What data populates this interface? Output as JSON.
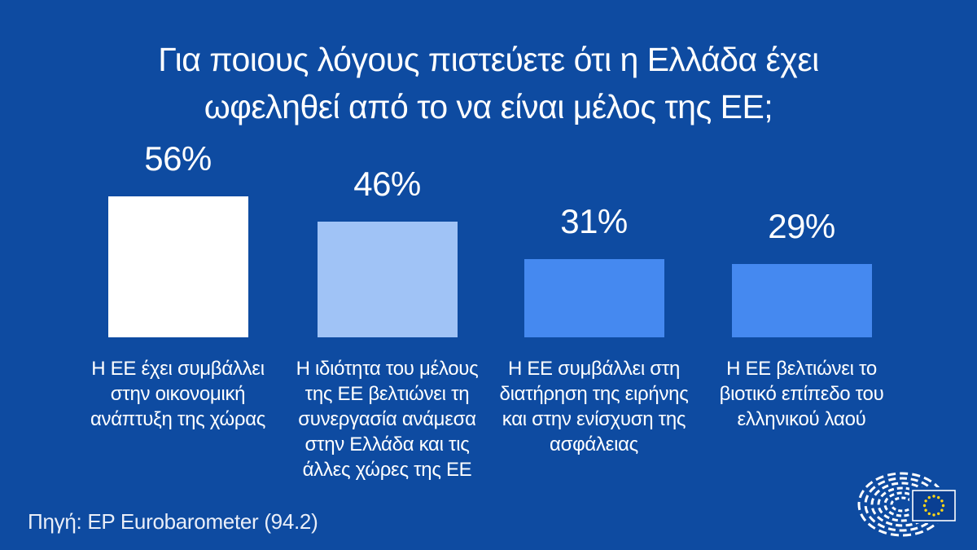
{
  "title": {
    "line1": "Για ποιους λόγους πιστεύετε ότι η Ελλάδα έχει",
    "line2": "ωφεληθεί από το να είναι μέλος της ΕΕ;"
  },
  "bars": [
    {
      "value": 56,
      "value_label": "56%",
      "label": "Η ΕΕ έχει συμβάλλει στην οικονομική ανάπτυξη της χώρας",
      "color": "#ffffff"
    },
    {
      "value": 46,
      "value_label": "46%",
      "label": "Η ιδιότητα του μέλους της ΕΕ βελτιώνει τη συνεργασία ανάμεσα στην Ελλάδα και τις άλλες χώρες της ΕΕ",
      "color": "#a0c3f6"
    },
    {
      "value": 31,
      "value_label": "31%",
      "label": "Η ΕΕ συμβάλλει στη διατήρηση της ειρήνης και στην ενίσχυση της ασφάλειας",
      "color": "#4589f0"
    },
    {
      "value": 29,
      "value_label": "29%",
      "label": "Η ΕΕ βελτιώνει το βιοτικό επίπεδο του ελληνικού λαού",
      "color": "#4589f0"
    }
  ],
  "source": "Πηγή: EP Eurobarometer (94.2)",
  "logo": {
    "name": "european-parliament-logo"
  },
  "colors": {
    "background": "#0e4ba1",
    "text": "#ffffff",
    "flag_blue": "#0a3f92",
    "star_yellow": "#ffd617"
  },
  "chart_data": {
    "type": "bar",
    "title": "Για ποιους λόγους πιστεύετε ότι η Ελλάδα έχει ωφεληθεί από το να είναι μέλος της ΕΕ;",
    "categories": [
      "Η ΕΕ έχει συμβάλλει στην οικονομική ανάπτυξη της χώρας",
      "Η ιδιότητα του μέλους της ΕΕ βελτιώνει τη συνεργασία ανάμεσα στην Ελλάδα και τις άλλες χώρες της ΕΕ",
      "Η ΕΕ συμβάλλει στη διατήρηση της ειρήνης και στην ενίσχυση της ασφάλειας",
      "Η ΕΕ βελτιώνει το βιοτικό επίπεδο του ελληνικού λαού"
    ],
    "values": [
      56,
      46,
      31,
      29
    ],
    "value_labels": [
      "56%",
      "46%",
      "31%",
      "29%"
    ],
    "unit": "%",
    "xlabel": "",
    "ylabel": "",
    "ylim": [
      0,
      56
    ],
    "grid": false,
    "legend": false,
    "bar_colors": [
      "#ffffff",
      "#a0c3f6",
      "#4589f0",
      "#4589f0"
    ],
    "source": "Πηγή: EP Eurobarometer (94.2)"
  }
}
